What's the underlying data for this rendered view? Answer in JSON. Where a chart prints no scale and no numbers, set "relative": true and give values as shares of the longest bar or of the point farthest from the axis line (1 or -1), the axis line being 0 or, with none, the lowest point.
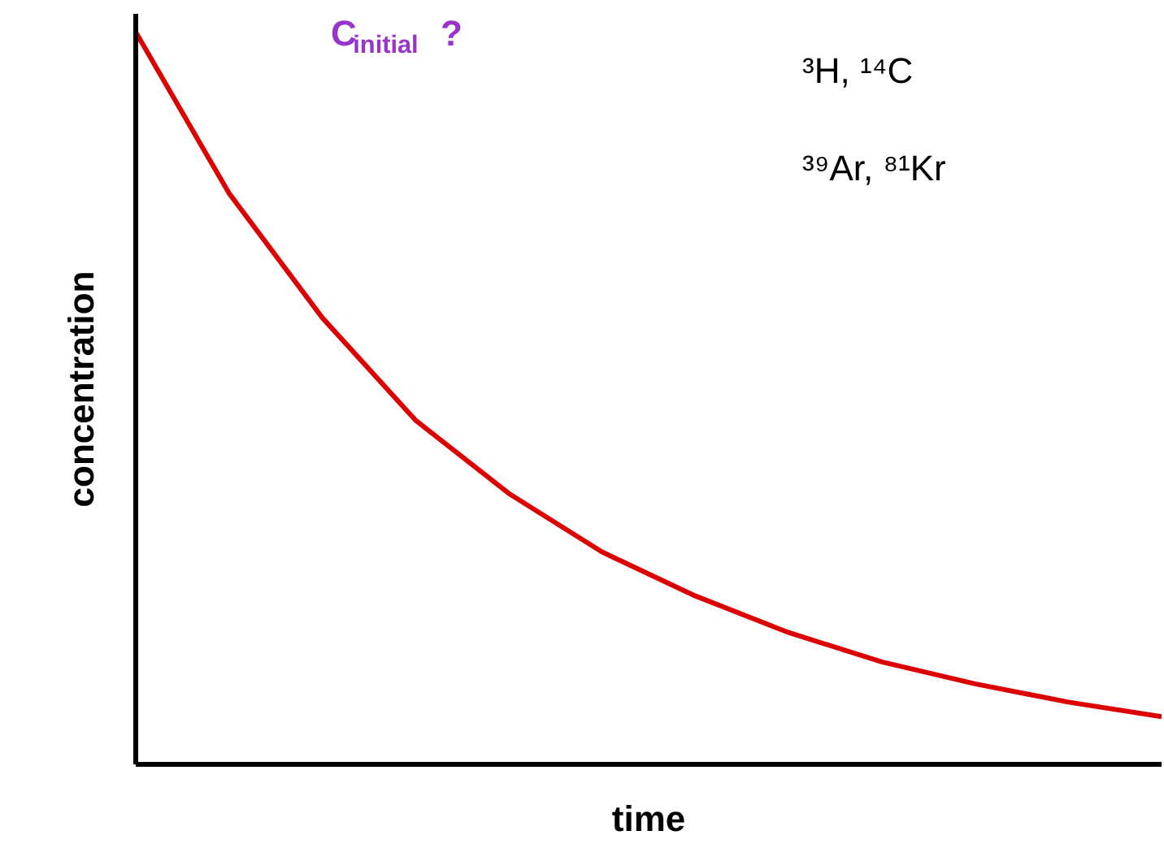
{
  "chart_data": {
    "type": "line",
    "relative": true,
    "xlabel": "time",
    "ylabel": "concentration",
    "categories": [
      null,
      null,
      null,
      null,
      null,
      null,
      null,
      null,
      null,
      null,
      null,
      null
    ],
    "series": [
      {
        "color": "#dd0000",
        "values": [
          1,
          0.78,
          0.61,
          0.47,
          0.37,
          0.29,
          0.23,
          0.18,
          0.14,
          0.11,
          0.085,
          0.065
        ]
      }
    ],
    "annotations": [
      "C$_{initial}$ ?",
      "³H, ¹⁴C",
      "³⁹Ar, ⁸¹Kr"
    ],
    "grid": false,
    "marker": "none",
    "line_style": "solid"
  }
}
